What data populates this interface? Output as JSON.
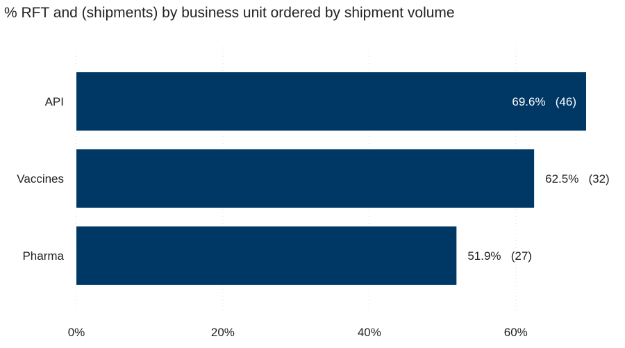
{
  "chart_data": {
    "type": "bar",
    "orientation": "horizontal",
    "title": "% RFT and (shipments) by business unit ordered by shipment volume",
    "categories": [
      "API",
      "Vaccines",
      "Pharma"
    ],
    "series": [
      {
        "values": [
          69.6,
          62.5,
          51.9
        ],
        "counts": [
          46,
          32,
          27
        ],
        "labels": [
          "69.6%   (46)",
          "62.5%   (32)",
          "51.9%   (27)"
        ]
      }
    ],
    "xticks": [
      "0%",
      "20%",
      "40%",
      "60%"
    ],
    "xtick_values": [
      0,
      20,
      40,
      60
    ],
    "xlim": [
      0,
      70.5
    ],
    "xlabel": "",
    "ylabel": "",
    "grid": "vertical dotted",
    "legend": "none",
    "bar_color": "#003865",
    "label_color_inside": "#ffffff",
    "label_color_outside": "#222222",
    "axis_text_color": "#222222",
    "grid_color": "#dddddd"
  }
}
